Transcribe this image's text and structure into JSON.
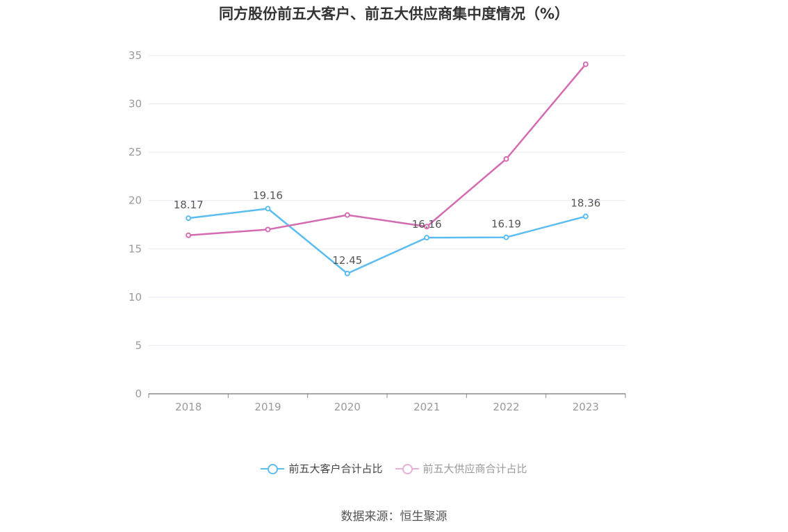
{
  "title": "同方股份前五大客户、前五大供应商集中度情况（%）",
  "source": "数据来源：恒生聚源",
  "colors": {
    "series_customers": "#5bbcf0",
    "series_suppliers": "#d46bb1",
    "grid": "#e6e9f0",
    "axis": "#888888",
    "tick_text": "#999999",
    "label_text": "#555555"
  },
  "chart_data": {
    "type": "line",
    "title": "同方股份前五大客户、前五大供应商集中度情况（%）",
    "xlabel": "",
    "ylabel": "",
    "categories": [
      "2018",
      "2019",
      "2020",
      "2021",
      "2022",
      "2023"
    ],
    "ylim": [
      0,
      35
    ],
    "yticks": [
      0,
      5,
      10,
      15,
      20,
      25,
      30,
      35
    ],
    "grid": true,
    "legend_position": "bottom",
    "series": [
      {
        "name": "前五大客户合计占比",
        "values": [
          18.17,
          19.16,
          12.45,
          16.16,
          16.19,
          18.36
        ],
        "labels": [
          "18.17",
          "19.16",
          "12.45",
          "16.16",
          "16.19",
          "18.36"
        ],
        "color": "#5bbcf0"
      },
      {
        "name": "前五大供应商合计占比",
        "values": [
          16.4,
          17.0,
          18.5,
          17.3,
          24.3,
          34.1
        ],
        "color": "#d46bb1"
      }
    ]
  }
}
